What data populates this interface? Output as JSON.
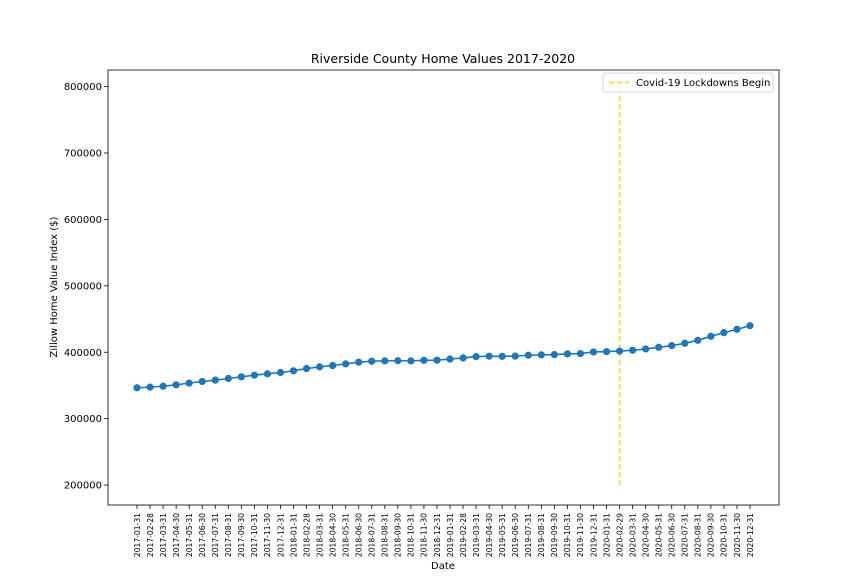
{
  "chart_data": {
    "type": "line",
    "title": "Riverside County Home Values 2017-2020",
    "xlabel": "Date",
    "ylabel": "Zillow Home Value Index ($)",
    "ylim": [
      170000,
      825000
    ],
    "yticks": [
      200000,
      300000,
      400000,
      500000,
      600000,
      700000,
      800000
    ],
    "grid": false,
    "legend_position": "top-right",
    "x": [
      "2017-01-31",
      "2017-02-28",
      "2017-03-31",
      "2017-04-30",
      "2017-05-31",
      "2017-06-30",
      "2017-07-31",
      "2017-08-31",
      "2017-09-30",
      "2017-10-31",
      "2017-11-30",
      "2017-12-31",
      "2018-01-31",
      "2018-02-28",
      "2018-03-31",
      "2018-04-30",
      "2018-05-31",
      "2018-06-30",
      "2018-07-31",
      "2018-08-31",
      "2018-09-30",
      "2018-10-31",
      "2018-11-30",
      "2018-12-31",
      "2019-01-31",
      "2019-02-28",
      "2019-03-31",
      "2019-04-30",
      "2019-05-31",
      "2019-06-30",
      "2019-07-31",
      "2019-08-31",
      "2019-09-30",
      "2019-10-31",
      "2019-11-30",
      "2019-12-31",
      "2020-01-31",
      "2020-02-29",
      "2020-03-31",
      "2020-04-30",
      "2020-05-31",
      "2020-06-30",
      "2020-07-31",
      "2020-08-31",
      "2020-09-30",
      "2020-10-31",
      "2020-11-30",
      "2020-12-31"
    ],
    "series": [
      {
        "name": "",
        "color": "#1f77b4",
        "values": [
          346500,
          347500,
          348800,
          351000,
          353500,
          356000,
          358000,
          360500,
          363000,
          365500,
          367500,
          369500,
          372000,
          375500,
          378000,
          380000,
          382500,
          385000,
          386500,
          387000,
          387200,
          387000,
          387800,
          388000,
          389800,
          391500,
          393500,
          394000,
          393800,
          394200,
          395500,
          396000,
          396500,
          397500,
          398000,
          400500,
          401000,
          401800,
          403000,
          405000,
          407500,
          410000,
          413500,
          418000,
          424000,
          429500,
          434500,
          440000
        ]
      }
    ],
    "annotation": {
      "label": "Covid-19 Lockdowns Begin",
      "x": "2020-02-29",
      "y_range": [
        200000,
        800000
      ],
      "color": "#ffd700",
      "style": "dashed"
    }
  }
}
